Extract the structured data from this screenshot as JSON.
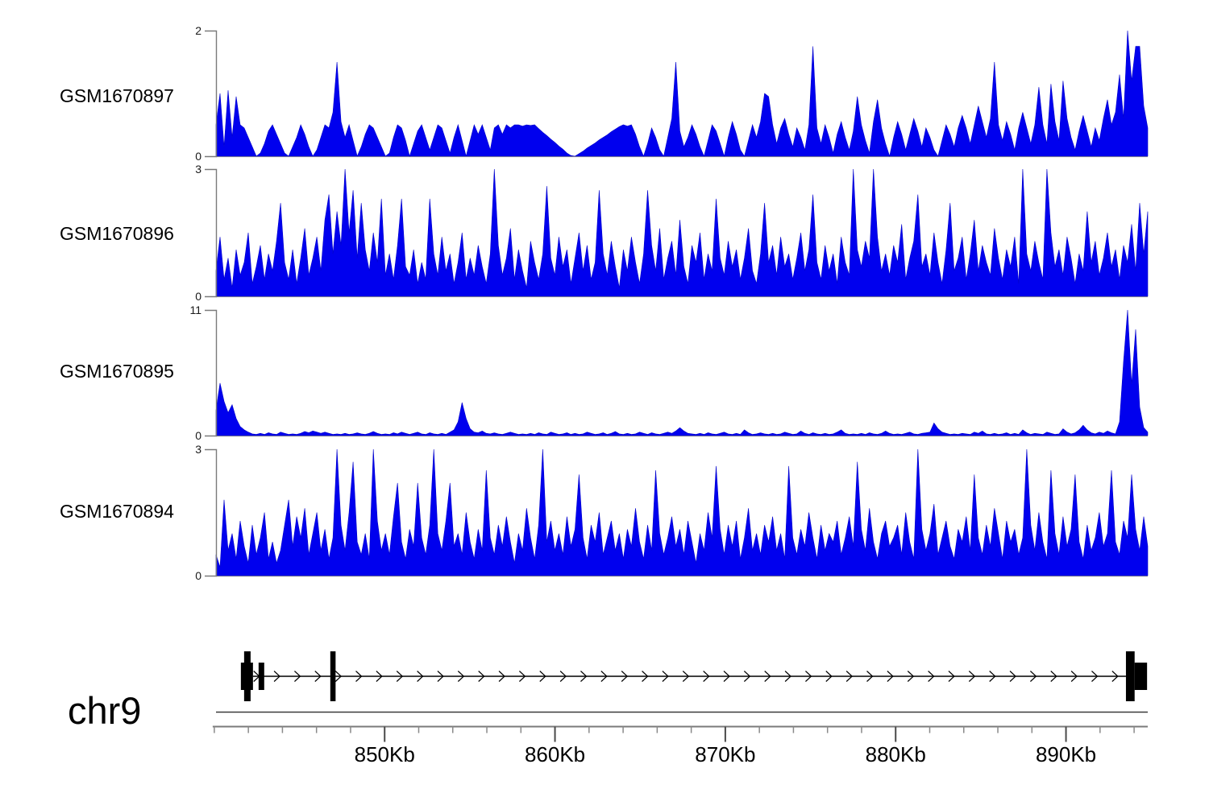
{
  "colors": {
    "signal": "#0000EE",
    "signal_edge": "#0000CC",
    "axis_gray": "#7a7a7a",
    "tick_minor": "#8a8a8a",
    "tick_major": "#4a4a4a",
    "gene_black": "#000000",
    "separator_line": "#3a3a3a",
    "text": "#000000"
  },
  "x_axis": {
    "chromosome": "chr9",
    "unit": "Kb",
    "region_start_kb": 840.1,
    "region_end_kb": 894.8,
    "major_ticks": [
      {
        "kb": 850,
        "label": "850Kb"
      },
      {
        "kb": 860,
        "label": "860Kb"
      },
      {
        "kb": 870,
        "label": "870Kb"
      },
      {
        "kb": 880,
        "label": "880Kb"
      },
      {
        "kb": 890,
        "label": "890Kb"
      }
    ],
    "minor_tick_start_kb": 840,
    "minor_tick_step_kb": 2,
    "minor_tick_end_kb": 894
  },
  "gene_track": {
    "strand": "forward",
    "intron": {
      "start_kb": 842.27,
      "end_kb": 893.52
    },
    "arrows": {
      "start_kb": 842.5,
      "end_kb": 893.3,
      "step_kb": 1.2
    },
    "exons": [
      {
        "start_kb": 841.56,
        "end_kb": 842.27,
        "kind": "utr"
      },
      {
        "start_kb": 841.75,
        "end_kb": 842.13,
        "kind": "cds"
      },
      {
        "start_kb": 842.6,
        "end_kb": 842.93,
        "kind": "utr"
      },
      {
        "start_kb": 846.81,
        "end_kb": 847.12,
        "kind": "cds"
      },
      {
        "start_kb": 893.52,
        "end_kb": 894.03,
        "kind": "cds"
      },
      {
        "start_kb": 894.03,
        "end_kb": 894.76,
        "kind": "utr"
      }
    ]
  },
  "chart_data": [
    {
      "type": "area",
      "name": "GSM1670897",
      "ylim": [
        0,
        2
      ],
      "ymax_label": "2",
      "ymin_label": "0",
      "values": [
        0.5,
        1.0,
        0.15,
        1.05,
        0.3,
        0.95,
        0.5,
        0.45,
        0.3,
        0.15,
        0,
        0.05,
        0.2,
        0.4,
        0.5,
        0.35,
        0.2,
        0.05,
        0,
        0.15,
        0.3,
        0.5,
        0.35,
        0.15,
        0,
        0.1,
        0.3,
        0.5,
        0.45,
        0.7,
        1.5,
        0.55,
        0.3,
        0.5,
        0.25,
        0,
        0.15,
        0.35,
        0.5,
        0.45,
        0.3,
        0.15,
        0,
        0.05,
        0.3,
        0.5,
        0.45,
        0.25,
        0,
        0.2,
        0.4,
        0.5,
        0.3,
        0.1,
        0.3,
        0.5,
        0.45,
        0.25,
        0.05,
        0.3,
        0.5,
        0.25,
        0,
        0.25,
        0.5,
        0.35,
        0.5,
        0.3,
        0.1,
        0.45,
        0.5,
        0.35,
        0.5,
        0.45,
        0.5,
        0.5,
        0.48,
        0.5,
        0.49,
        0.5,
        0.44,
        0.38,
        0.33,
        0.27,
        0.22,
        0.16,
        0.11,
        0.05,
        0.01,
        0,
        0.04,
        0.08,
        0.13,
        0.17,
        0.21,
        0.26,
        0.3,
        0.34,
        0.39,
        0.43,
        0.47,
        0.5,
        0.48,
        0.5,
        0.35,
        0.15,
        0,
        0.2,
        0.45,
        0.3,
        0.1,
        0,
        0.3,
        0.6,
        1.5,
        0.4,
        0.15,
        0.3,
        0.5,
        0.35,
        0.15,
        0,
        0.25,
        0.5,
        0.4,
        0.2,
        0,
        0.3,
        0.55,
        0.35,
        0.1,
        0,
        0.25,
        0.5,
        0.3,
        0.55,
        1.0,
        0.95,
        0.5,
        0.2,
        0.45,
        0.6,
        0.35,
        0.15,
        0.45,
        0.3,
        0.1,
        0.5,
        1.75,
        0.45,
        0.2,
        0.5,
        0.3,
        0.05,
        0.35,
        0.55,
        0.3,
        0.1,
        0.4,
        0.95,
        0.5,
        0.25,
        0.05,
        0.55,
        0.9,
        0.45,
        0.2,
        0,
        0.3,
        0.55,
        0.35,
        0.1,
        0.35,
        0.6,
        0.4,
        0.15,
        0.45,
        0.3,
        0.1,
        0,
        0.25,
        0.5,
        0.35,
        0.15,
        0.45,
        0.65,
        0.45,
        0.2,
        0.5,
        0.8,
        0.55,
        0.3,
        0.6,
        1.5,
        0.5,
        0.25,
        0.55,
        0.35,
        0.1,
        0.45,
        0.7,
        0.45,
        0.2,
        0.5,
        1.1,
        0.5,
        0.2,
        1.15,
        0.55,
        0.25,
        1.2,
        0.6,
        0.3,
        0.1,
        0.4,
        0.65,
        0.4,
        0.15,
        0.45,
        0.25,
        0.6,
        0.9,
        0.5,
        0.7,
        1.3,
        0.6,
        2.0,
        1.2,
        1.75,
        1.75,
        0.8,
        0.45
      ]
    },
    {
      "type": "area",
      "name": "GSM1670896",
      "ylim": [
        0,
        3
      ],
      "ymax_label": "3",
      "ymin_label": "0",
      "values": [
        0.6,
        1.4,
        0.4,
        0.9,
        0.2,
        1.1,
        0.5,
        0.8,
        1.5,
        0.3,
        0.7,
        1.2,
        0.4,
        1.0,
        0.6,
        1.3,
        2.2,
        0.8,
        0.4,
        1.1,
        0.3,
        0.9,
        1.6,
        0.5,
        0.9,
        1.4,
        0.6,
        1.8,
        2.4,
        1.0,
        2.0,
        1.2,
        3.0,
        1.5,
        2.5,
        0.9,
        2.2,
        1.1,
        0.6,
        1.5,
        0.8,
        2.3,
        0.5,
        1.0,
        0.4,
        1.2,
        2.3,
        0.7,
        0.5,
        1.1,
        0.3,
        0.8,
        0.4,
        2.3,
        1.0,
        0.5,
        1.4,
        0.6,
        1.0,
        0.3,
        0.8,
        1.5,
        0.4,
        0.9,
        0.5,
        1.2,
        0.7,
        0.3,
        1.0,
        3.0,
        1.2,
        0.5,
        0.9,
        1.6,
        0.4,
        1.1,
        0.6,
        0.2,
        1.3,
        0.8,
        0.4,
        1.0,
        2.6,
        0.9,
        0.5,
        1.4,
        0.7,
        1.1,
        0.3,
        0.9,
        1.5,
        0.6,
        1.2,
        0.4,
        0.8,
        2.5,
        1.0,
        0.5,
        1.3,
        0.7,
        0.2,
        1.1,
        0.6,
        1.4,
        0.8,
        0.3,
        1.0,
        2.5,
        1.2,
        0.6,
        1.6,
        0.4,
        0.9,
        1.3,
        0.5,
        1.8,
        0.7,
        0.3,
        1.2,
        0.8,
        1.5,
        0.4,
        1.0,
        0.6,
        2.3,
        0.9,
        0.5,
        1.3,
        0.7,
        1.1,
        0.4,
        0.9,
        1.6,
        0.6,
        0.3,
        1.0,
        2.2,
        0.8,
        1.2,
        0.5,
        1.4,
        0.7,
        1.0,
        0.4,
        0.9,
        1.5,
        0.6,
        1.1,
        2.4,
        0.8,
        0.4,
        1.2,
        0.6,
        1.0,
        0.3,
        1.4,
        0.8,
        0.5,
        3.0,
        1.1,
        0.7,
        1.3,
        0.9,
        3.0,
        1.4,
        0.6,
        1.0,
        0.5,
        1.2,
        0.8,
        1.7,
        0.4,
        0.9,
        1.3,
        2.4,
        0.7,
        1.0,
        0.5,
        1.5,
        0.8,
        0.3,
        1.1,
        2.2,
        0.6,
        0.9,
        1.4,
        0.4,
        1.0,
        1.8,
        0.6,
        1.2,
        0.8,
        0.5,
        1.6,
        0.9,
        0.4,
        1.1,
        0.7,
        1.4,
        0.3,
        3.0,
        1.0,
        0.6,
        1.3,
        0.8,
        0.4,
        3.0,
        1.5,
        0.7,
        1.1,
        0.5,
        1.4,
        0.9,
        0.3,
        1.0,
        0.6,
        2.0,
        0.8,
        1.3,
        0.5,
        0.9,
        1.5,
        0.7,
        1.1,
        0.4,
        1.2,
        0.8,
        1.7,
        0.6,
        2.2,
        1.0,
        2.0
      ]
    },
    {
      "type": "area",
      "name": "GSM1670895",
      "ylim": [
        0,
        11
      ],
      "ymax_label": "11",
      "ymin_label": "0",
      "values": [
        2.2,
        4.6,
        3.0,
        2.0,
        2.7,
        1.5,
        0.8,
        0.5,
        0.3,
        0.15,
        0.1,
        0.2,
        0.1,
        0.25,
        0.15,
        0.1,
        0.3,
        0.2,
        0.1,
        0.15,
        0.1,
        0.2,
        0.35,
        0.25,
        0.4,
        0.3,
        0.2,
        0.3,
        0.2,
        0.1,
        0.15,
        0.1,
        0.2,
        0.1,
        0.15,
        0.25,
        0.15,
        0.1,
        0.2,
        0.35,
        0.2,
        0.1,
        0.15,
        0.1,
        0.25,
        0.15,
        0.3,
        0.2,
        0.1,
        0.2,
        0.3,
        0.15,
        0.1,
        0.25,
        0.15,
        0.1,
        0.2,
        0.1,
        0.3,
        0.5,
        1.2,
        2.9,
        1.5,
        0.6,
        0.3,
        0.25,
        0.4,
        0.2,
        0.15,
        0.25,
        0.15,
        0.1,
        0.2,
        0.3,
        0.2,
        0.1,
        0.15,
        0.1,
        0.2,
        0.1,
        0.25,
        0.15,
        0.1,
        0.3,
        0.2,
        0.1,
        0.15,
        0.25,
        0.1,
        0.2,
        0.1,
        0.15,
        0.3,
        0.2,
        0.1,
        0.15,
        0.25,
        0.1,
        0.2,
        0.35,
        0.15,
        0.1,
        0.2,
        0.1,
        0.15,
        0.3,
        0.2,
        0.1,
        0.25,
        0.15,
        0.1,
        0.2,
        0.3,
        0.2,
        0.4,
        0.7,
        0.4,
        0.2,
        0.15,
        0.1,
        0.2,
        0.1,
        0.25,
        0.15,
        0.1,
        0.2,
        0.3,
        0.15,
        0.1,
        0.2,
        0.1,
        0.5,
        0.25,
        0.1,
        0.15,
        0.25,
        0.15,
        0.1,
        0.2,
        0.1,
        0.15,
        0.3,
        0.2,
        0.1,
        0.15,
        0.4,
        0.2,
        0.1,
        0.25,
        0.15,
        0.1,
        0.2,
        0.1,
        0.15,
        0.3,
        0.5,
        0.2,
        0.1,
        0.15,
        0.1,
        0.2,
        0.1,
        0.25,
        0.15,
        0.1,
        0.2,
        0.4,
        0.2,
        0.1,
        0.15,
        0.1,
        0.2,
        0.3,
        0.15,
        0.1,
        0.2,
        0.25,
        0.3,
        1.1,
        0.6,
        0.3,
        0.2,
        0.1,
        0.15,
        0.1,
        0.2,
        0.15,
        0.1,
        0.3,
        0.2,
        0.4,
        0.15,
        0.1,
        0.2,
        0.1,
        0.15,
        0.25,
        0.1,
        0.2,
        0.1,
        0.5,
        0.25,
        0.1,
        0.2,
        0.15,
        0.1,
        0.3,
        0.2,
        0.1,
        0.15,
        0.6,
        0.3,
        0.15,
        0.25,
        0.5,
        0.9,
        0.5,
        0.25,
        0.15,
        0.3,
        0.2,
        0.4,
        0.25,
        0.15,
        1.2,
        6.5,
        11,
        4.5,
        9.3,
        2.5,
        0.7,
        0.3
      ]
    },
    {
      "type": "area",
      "name": "GSM1670894",
      "ylim": [
        0,
        3
      ],
      "ymax_label": "3",
      "ymin_label": "0",
      "values": [
        0.5,
        0.2,
        1.8,
        0.6,
        1.0,
        0.4,
        1.3,
        0.7,
        0.3,
        1.2,
        0.5,
        0.9,
        1.5,
        0.4,
        0.8,
        0.3,
        0.6,
        1.2,
        1.8,
        0.7,
        1.4,
        0.9,
        1.6,
        0.5,
        1.0,
        1.5,
        0.6,
        1.1,
        0.4,
        0.9,
        3.0,
        1.2,
        0.6,
        1.5,
        2.7,
        0.8,
        0.5,
        1.0,
        0.4,
        3.0,
        1.3,
        0.6,
        1.0,
        0.5,
        1.4,
        2.2,
        0.8,
        0.4,
        1.1,
        0.7,
        2.2,
        0.9,
        0.5,
        1.2,
        3.0,
        1.0,
        0.6,
        1.3,
        2.2,
        0.7,
        1.0,
        0.5,
        1.5,
        0.8,
        0.4,
        1.1,
        0.6,
        2.5,
        0.9,
        0.5,
        1.2,
        0.7,
        1.4,
        0.8,
        0.3,
        1.0,
        0.6,
        1.6,
        0.9,
        0.4,
        1.2,
        3.0,
        0.8,
        1.3,
        0.6,
        1.0,
        0.5,
        1.4,
        0.7,
        1.1,
        2.4,
        0.9,
        0.4,
        1.2,
        0.8,
        1.5,
        0.5,
        0.9,
        1.3,
        0.6,
        1.0,
        0.4,
        1.1,
        0.7,
        1.6,
        0.8,
        0.4,
        1.2,
        0.6,
        2.5,
        1.0,
        0.5,
        0.9,
        1.4,
        0.7,
        1.1,
        0.5,
        1.3,
        0.8,
        0.3,
        1.0,
        0.6,
        1.5,
        0.9,
        2.6,
        1.1,
        0.5,
        1.2,
        0.7,
        1.3,
        0.4,
        0.9,
        1.6,
        0.6,
        1.0,
        0.5,
        1.2,
        0.8,
        1.4,
        0.6,
        1.0,
        0.4,
        2.6,
        0.9,
        0.5,
        1.1,
        0.7,
        1.5,
        0.9,
        0.4,
        1.2,
        0.6,
        1.0,
        0.8,
        1.3,
        0.5,
        0.9,
        1.4,
        0.7,
        2.7,
        1.1,
        0.6,
        1.6,
        0.8,
        0.4,
        1.0,
        1.3,
        0.7,
        0.9,
        1.2,
        0.5,
        1.5,
        0.8,
        0.4,
        3.0,
        1.1,
        0.6,
        1.0,
        1.7,
        0.5,
        0.9,
        1.3,
        0.7,
        0.4,
        1.1,
        0.8,
        1.4,
        0.6,
        2.4,
        0.9,
        0.5,
        1.2,
        0.7,
        1.6,
        1.0,
        0.4,
        1.3,
        0.8,
        1.1,
        0.5,
        0.9,
        3.0,
        1.2,
        0.6,
        1.5,
        0.8,
        0.4,
        2.5,
        1.0,
        0.5,
        1.4,
        0.7,
        1.1,
        2.4,
        0.8,
        0.4,
        1.2,
        0.6,
        0.9,
        1.5,
        0.7,
        1.0,
        2.5,
        0.8,
        0.5,
        1.3,
        0.9,
        2.4,
        1.1,
        0.6,
        1.4,
        0.7
      ]
    }
  ]
}
